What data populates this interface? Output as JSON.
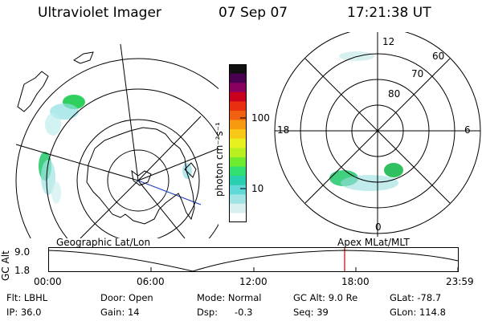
{
  "header": {
    "instrument": "Ultraviolet Imager",
    "date": "07 Sep 07",
    "time": "17:21:38 UT"
  },
  "colorbar": {
    "unit_label": "photon cm⁻²s⁻¹",
    "ticks": [
      "100",
      "10"
    ],
    "colors": [
      "#101010",
      "#4a0050",
      "#8a0060",
      "#c8001e",
      "#e83010",
      "#f06010",
      "#f89a10",
      "#f8c818",
      "#e8f020",
      "#b8f020",
      "#70ec30",
      "#30e070",
      "#28d0b0",
      "#60d8d8",
      "#a0e4e4",
      "#d8f0f0",
      "#ffffff"
    ]
  },
  "right_map": {
    "latitude_labels": [
      "80",
      "70",
      "60"
    ],
    "mlt_labels": {
      "top": "12",
      "left": "18",
      "right": "6",
      "bottom": "0"
    }
  },
  "timeline": {
    "left_label": "Geographic Lat/Lon",
    "right_label": "Apex MLat/MLT",
    "axis_title": "GC Alt",
    "y_ticks": [
      "9.0",
      "1.8"
    ],
    "x_ticks": [
      "00:00",
      "06:00",
      "12:00",
      "18:00",
      "23:59"
    ],
    "marker_color": "#cc0000",
    "line_color": "#000000"
  },
  "info": {
    "filter": "Flt: LBHL",
    "ip": "IP: 36.0",
    "door": "Door: Open",
    "gain": "Gain: 14",
    "mode": "Mode: Normal",
    "dsp": "Dsp:",
    "dsp_value": "-0.3",
    "gc_alt": "GC Alt: 9.0 Re",
    "seq": "Seq: 39",
    "glat": "GLat: -78.7",
    "glon": "GLon: 114.8"
  }
}
